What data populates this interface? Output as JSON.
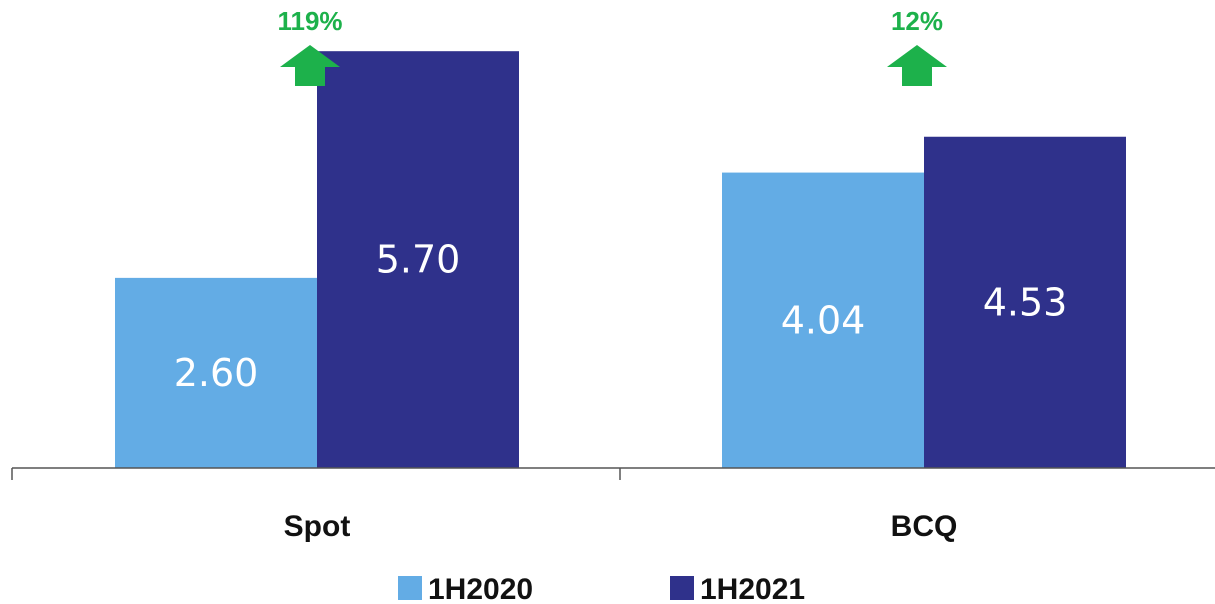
{
  "chart_data": {
    "type": "bar",
    "categories": [
      "Spot",
      "BCQ"
    ],
    "series": [
      {
        "name": "1H2020",
        "values": [
          2.6,
          4.04
        ],
        "color": "#63ACE5"
      },
      {
        "name": "1H2021",
        "values": [
          5.7,
          4.53
        ],
        "color": "#2F318B"
      }
    ],
    "value_labels": [
      [
        "2.60",
        "4.04"
      ],
      [
        "5.70",
        "4.53"
      ]
    ],
    "changes": [
      "119%",
      "12%"
    ],
    "change_color": "#1DB14B",
    "change_icon": "arrow-up-icon",
    "ylim": [
      0,
      6.4
    ],
    "axis_color": "#555555",
    "legend_position": "bottom"
  }
}
